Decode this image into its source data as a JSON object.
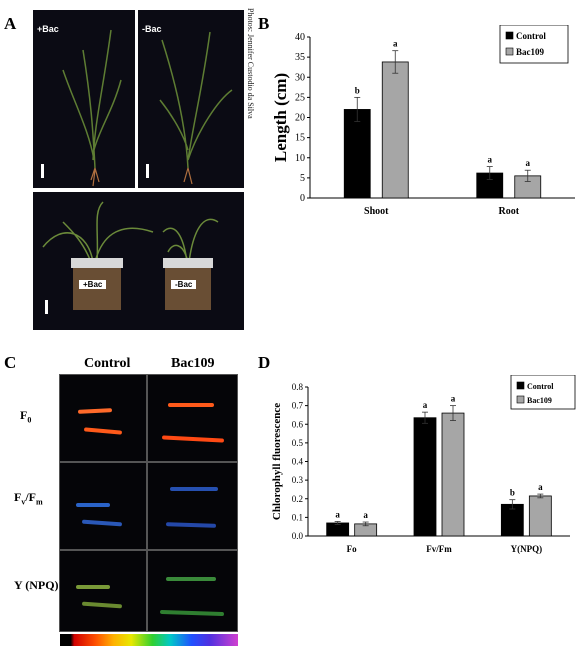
{
  "panels": {
    "A": "A",
    "B": "B",
    "C": "C",
    "D": "D"
  },
  "photo_A": {
    "top_left_label": "+Bac",
    "top_right_label": "-Bac",
    "pot_left_label": "+Bac",
    "pot_right_label": "-Bac",
    "credit": "Photos: Jennifer Custodio da Silva"
  },
  "panel_C": {
    "col_control": "Control",
    "col_bac": "Bac109",
    "row_labels": [
      "F0",
      "Fv/Fm",
      "Y (NPQ)"
    ]
  },
  "colors": {
    "control": "#000000",
    "bac109": "#a6a6a6"
  },
  "chart_data": [
    {
      "type": "bar",
      "panel": "B",
      "ylabel": "Length (cm)",
      "ylim": [
        0,
        40
      ],
      "yticks": [
        0,
        5,
        10,
        15,
        20,
        25,
        30,
        35,
        40
      ],
      "categories": [
        "Shoot",
        "Root"
      ],
      "series": [
        {
          "name": "Control",
          "values": [
            22,
            6.2
          ],
          "errors": [
            3.0,
            1.6
          ],
          "letters": [
            "b",
            "a"
          ]
        },
        {
          "name": "Bac109",
          "values": [
            33.8,
            5.5
          ],
          "errors": [
            2.8,
            1.4
          ],
          "letters": [
            "a",
            "a"
          ]
        }
      ],
      "legend_position": "top-right"
    },
    {
      "type": "bar",
      "panel": "D",
      "ylabel": "Chlorophyll fluorescence",
      "ylim": [
        0,
        0.8
      ],
      "yticks": [
        "0.0",
        "0.1",
        "0.2",
        "0.3",
        "0.4",
        "0.5",
        "0.6",
        "0.7",
        "0.8"
      ],
      "categories": [
        "Fo",
        "Fv/Fm",
        "Y(NPQ)"
      ],
      "series": [
        {
          "name": "Control",
          "values": [
            0.07,
            0.635,
            0.17
          ],
          "errors": [
            0.008,
            0.03,
            0.025
          ],
          "letters": [
            "a",
            "a",
            "b"
          ]
        },
        {
          "name": "Bac109",
          "values": [
            0.065,
            0.66,
            0.215
          ],
          "errors": [
            0.01,
            0.04,
            0.01
          ],
          "letters": [
            "a",
            "a",
            "a"
          ]
        }
      ],
      "legend_position": "top-right"
    }
  ]
}
